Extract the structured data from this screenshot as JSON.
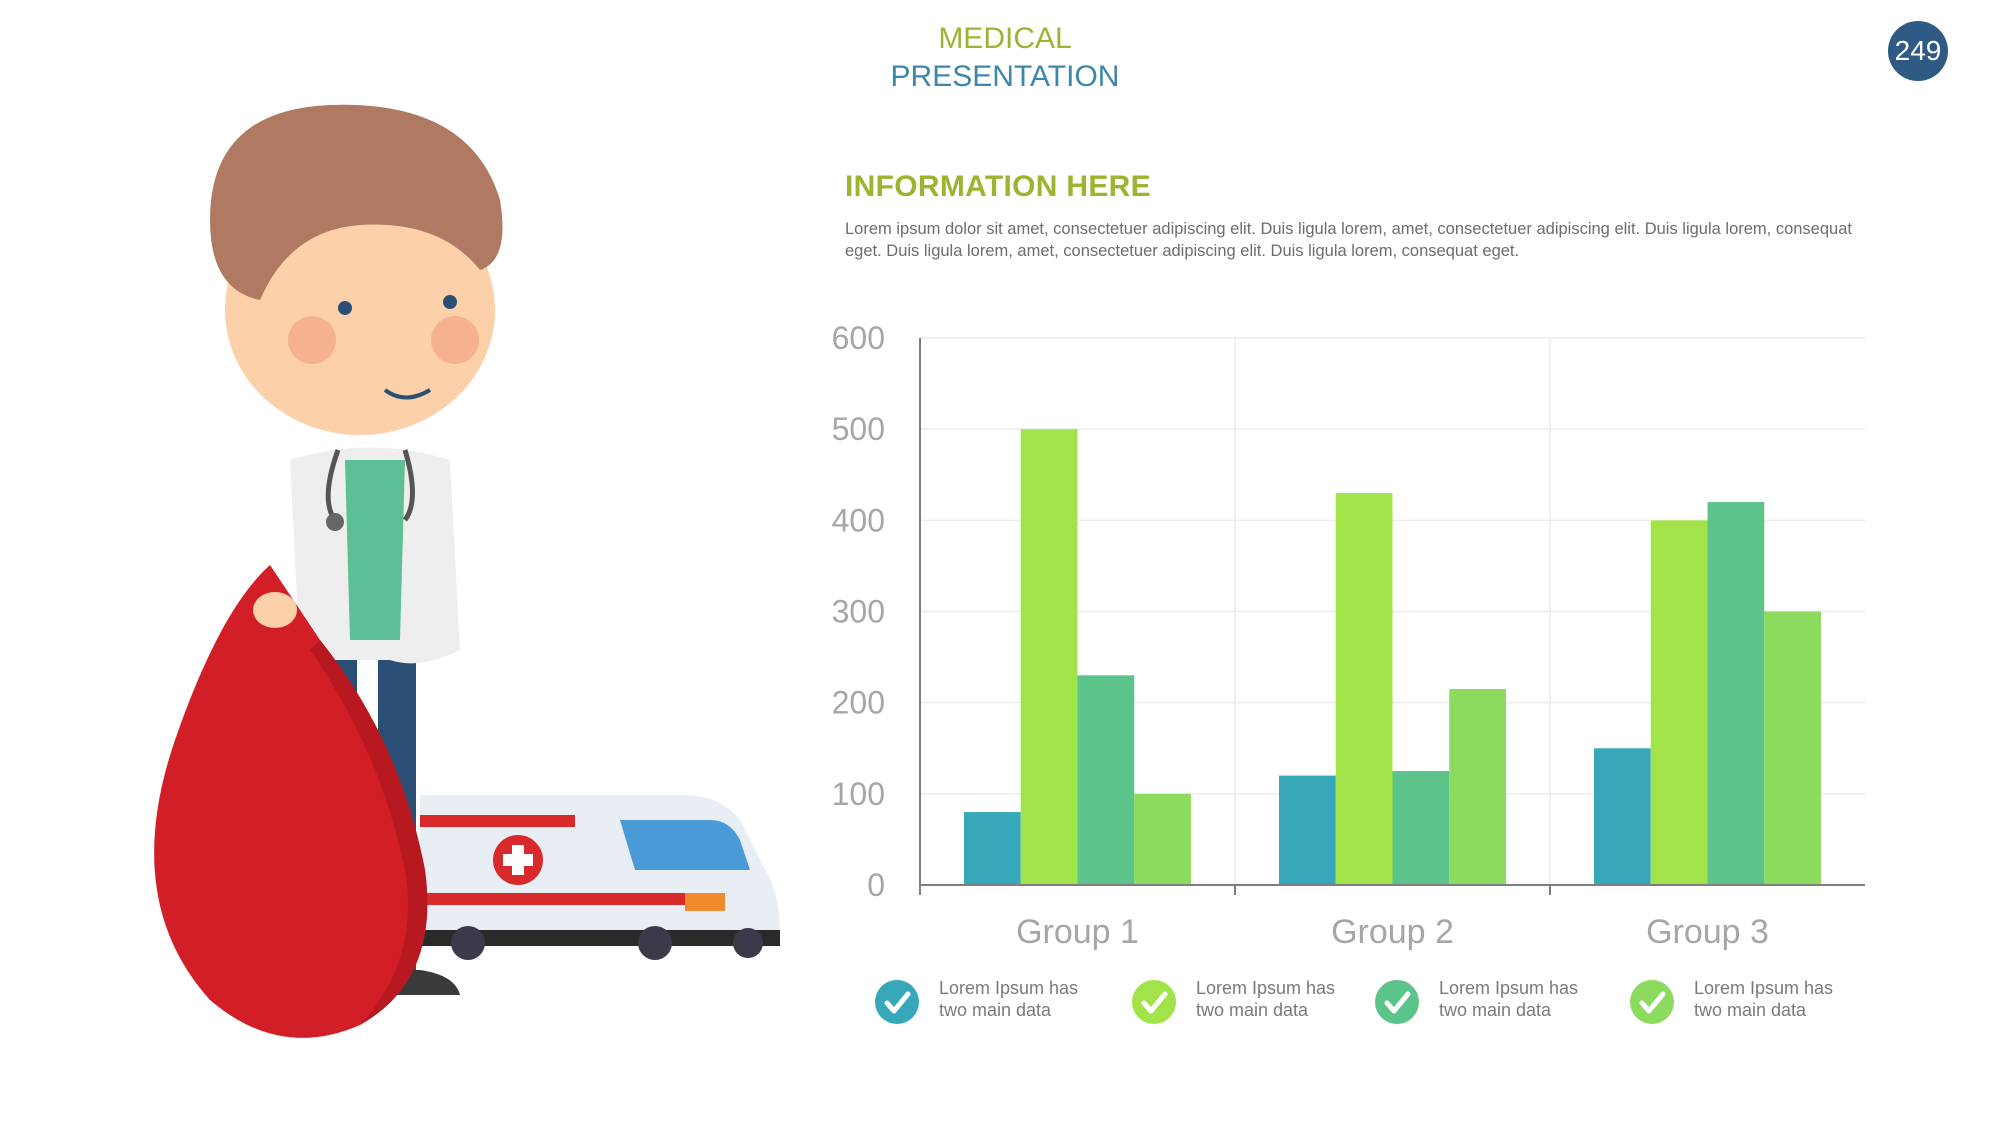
{
  "header": {
    "title_line1": "MEDICAL",
    "title_line2": "PRESENTATION",
    "page_number": "249"
  },
  "info": {
    "heading": "INFORMATION HERE",
    "body": "Lorem ipsum dolor sit amet, consectetuer adipiscing elit. Duis ligula lorem, amet, consectetuer adipiscing elit. Duis ligula lorem, consequat eget. Duis ligula lorem, amet, consectetuer adipiscing elit. Duis ligula lorem, consequat eget."
  },
  "chart_data": {
    "type": "bar",
    "categories": [
      "Group 1",
      "Group 2",
      "Group 3"
    ],
    "series": [
      {
        "color": "#36a8ba",
        "values": [
          80,
          120,
          150
        ]
      },
      {
        "color": "#a3e34a",
        "values": [
          500,
          430,
          400
        ]
      },
      {
        "color": "#5cc48a",
        "values": [
          230,
          125,
          420
        ]
      },
      {
        "color": "#8cda5e",
        "values": [
          100,
          215,
          300
        ]
      }
    ],
    "ylim": [
      0,
      600
    ],
    "yticks": [
      "0",
      "100",
      "200",
      "300",
      "400",
      "500",
      "600"
    ],
    "grid": true
  },
  "legend": [
    {
      "text": "Lorem Ipsum has two main data",
      "color": "#36a8ba",
      "icon": "check-icon"
    },
    {
      "text": "Lorem Ipsum has two main data",
      "color": "#a3e34a",
      "icon": "check-icon"
    },
    {
      "text": "Lorem Ipsum has two main data",
      "color": "#5cc48a",
      "icon": "check-icon"
    },
    {
      "text": "Lorem Ipsum has two main data",
      "color": "#8cda5e",
      "icon": "check-icon"
    }
  ],
  "illustration": {
    "subject": "doctor-with-blood-drop-and-ambulance",
    "colors": {
      "hair": "#b07a62",
      "skin": "#fcd0a8",
      "coat": "#eeeeee",
      "shirt": "#5cbf98",
      "pants": "#2b4f74",
      "drop": "#d21e27",
      "ambulance": "#e9eef5",
      "stripe": "#d82a2a"
    }
  }
}
